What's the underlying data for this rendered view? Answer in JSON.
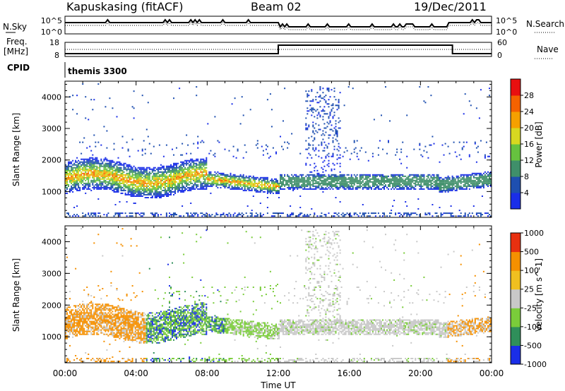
{
  "header": {
    "title": "Kapuskasing (fitACF)",
    "beam": "Beam 02",
    "date": "19/Dec/2011"
  },
  "top_panel": {
    "left_labels": [
      "N.Sky",
      "Freq.",
      "[MHz]",
      "CPID"
    ],
    "right_labels": [
      "N.Search",
      "Nave"
    ],
    "nsky_ticks": [
      "10^5",
      "10^0"
    ],
    "freq_ticks": [
      "18",
      "8"
    ],
    "nave_ticks": [
      "60",
      "0"
    ],
    "cpid_text": "themis 3300"
  },
  "chart_data": [
    {
      "type": "heatmap",
      "name": "Power",
      "ylabel": "Slant Range [km]",
      "xlabel": "",
      "x_range": [
        "00:00",
        "24:00"
      ],
      "ylim": [
        180,
        4500
      ],
      "yticks": [
        1000,
        2000,
        3000,
        4000
      ],
      "colorbar": {
        "label": "Power [dB]",
        "ticks": [
          4,
          8,
          12,
          16,
          20,
          24,
          28
        ],
        "levels": [
          {
            "lo": 0,
            "hi": 4,
            "color": "#1a2ee8"
          },
          {
            "lo": 4,
            "hi": 8,
            "color": "#1e4fb0"
          },
          {
            "lo": 8,
            "hi": 12,
            "color": "#3f8f6a"
          },
          {
            "lo": 12,
            "hi": 16,
            "color": "#66c23f"
          },
          {
            "lo": 16,
            "hi": 20,
            "color": "#d8d820"
          },
          {
            "lo": 20,
            "hi": 24,
            "color": "#f5a000"
          },
          {
            "lo": 24,
            "hi": 28,
            "color": "#f56200"
          },
          {
            "lo": 28,
            "hi": 32,
            "color": "#e81010"
          }
        ]
      }
    },
    {
      "type": "heatmap",
      "name": "Velocity",
      "ylabel": "Slant Range [km]",
      "xlabel": "Time UT",
      "x_range": [
        "00:00",
        "24:00"
      ],
      "ylim": [
        180,
        4500
      ],
      "yticks": [
        1000,
        2000,
        3000,
        4000
      ],
      "colorbar": {
        "label": "Velocity [m s^-1]",
        "ticks": [
          1000,
          500,
          100,
          25,
          -25,
          -100,
          -500,
          -1000
        ],
        "levels": [
          {
            "lo": 500,
            "hi": 1000,
            "color": "#1a2ee8"
          },
          {
            "lo": 100,
            "hi": 500,
            "color": "#2f8f5a"
          },
          {
            "lo": 25,
            "hi": 100,
            "color": "#7acc3a"
          },
          {
            "lo": -25,
            "hi": 25,
            "color": "#c8c8c8"
          },
          {
            "lo": -100,
            "hi": -25,
            "color": "#f0c020"
          },
          {
            "lo": -500,
            "hi": -100,
            "color": "#f59000"
          },
          {
            "lo": -1000,
            "hi": -500,
            "color": "#e83010"
          }
        ]
      }
    }
  ],
  "time_axis": {
    "tick_labels": [
      "00:00",
      "04:00",
      "08:00",
      "12:00",
      "16:00",
      "20:00",
      "00:00"
    ],
    "tick_hours": [
      0,
      4,
      8,
      12,
      16,
      20,
      24
    ]
  }
}
